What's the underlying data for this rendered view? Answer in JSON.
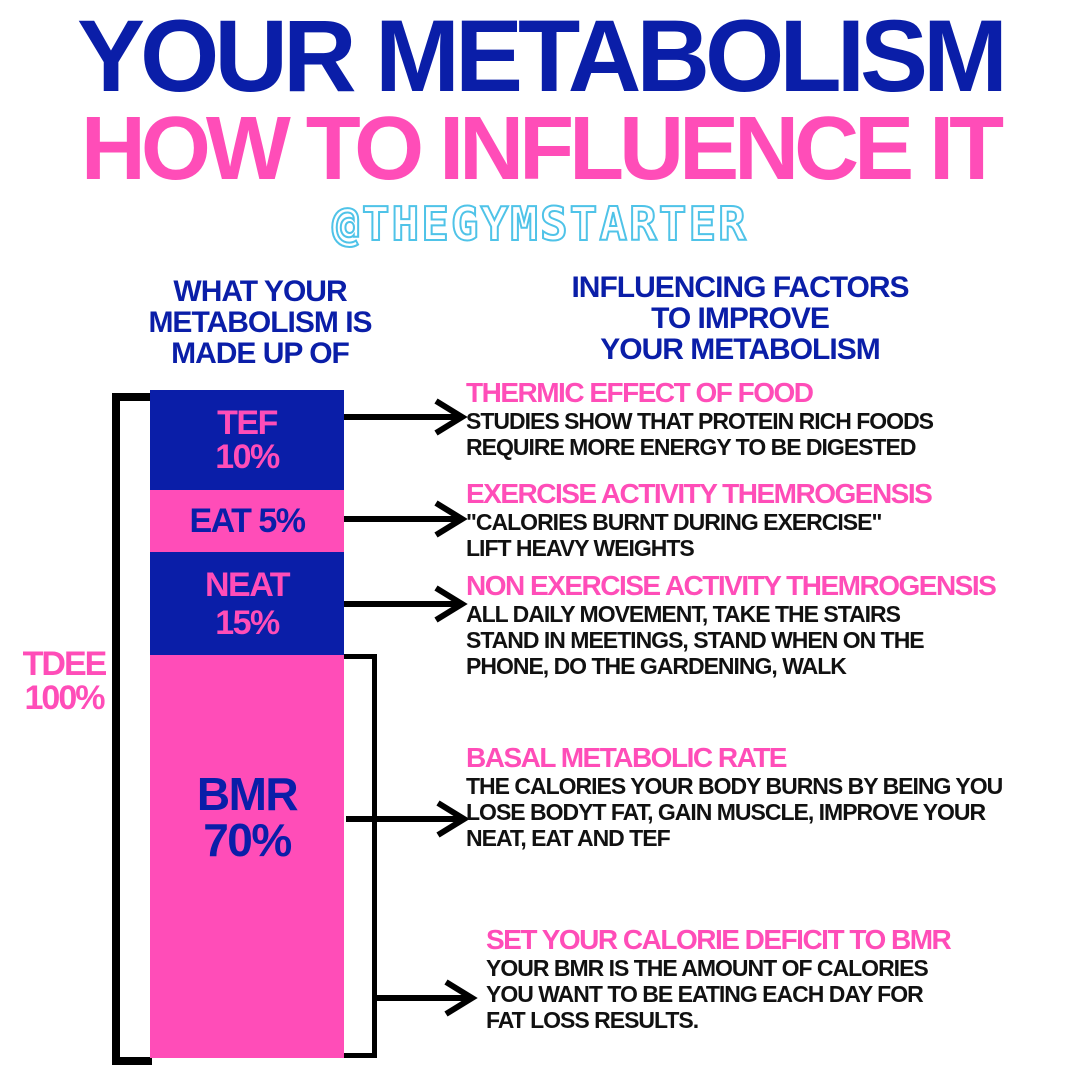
{
  "header": {
    "title": "YOUR METABOLISM",
    "subtitle": "HOW TO INFLUENCE IT",
    "handle": "@THEGYMSTARTER"
  },
  "left_column": {
    "heading_lines": [
      "WHAT YOUR",
      "METABOLISM IS",
      "MADE UP OF"
    ],
    "total_label": [
      "TDEE",
      "100%"
    ]
  },
  "right_column": {
    "heading_lines": [
      "INFLUENCING FACTORS",
      "TO IMPROVE",
      "YOUR METABOLISM"
    ]
  },
  "segments": [
    {
      "label": "TEF",
      "percent": "10%",
      "value": 10,
      "color": "#0a1ea8",
      "text_color": "#ff4db8"
    },
    {
      "label": "EAT 5%",
      "percent": "",
      "value": 5,
      "color": "#ff4db8",
      "text_color": "#0a1ea8"
    },
    {
      "label": "NEAT",
      "percent": "15%",
      "value": 15,
      "color": "#0a1ea8",
      "text_color": "#ff4db8"
    },
    {
      "label": "BMR",
      "percent": "70%",
      "value": 70,
      "color": "#ff4db8",
      "text_color": "#0a1ea8"
    }
  ],
  "factors": [
    {
      "title": "THERMIC EFFECT OF FOOD",
      "lines": [
        "STUDIES SHOW THAT PROTEIN RICH FOODS",
        "REQUIRE MORE ENERGY TO BE DIGESTED"
      ]
    },
    {
      "title": "EXERCISE ACTIVITY THEMROGENSIS",
      "lines": [
        "\"CALORIES BURNT DURING EXERCISE\"",
        "LIFT HEAVY WEIGHTS"
      ]
    },
    {
      "title": "NON EXERCISE ACTIVITY THEMROGENSIS",
      "lines": [
        "ALL DAILY MOVEMENT, TAKE THE STAIRS",
        "STAND IN MEETINGS, STAND WHEN ON THE",
        "PHONE, DO THE GARDENING, WALK"
      ]
    },
    {
      "title": "BASAL METABOLIC RATE",
      "lines": [
        "THE CALORIES YOUR BODY BURNS BY BEING YOU",
        "LOSE BODYT FAT, GAIN MUSCLE, IMPROVE YOUR",
        "NEAT, EAT AND TEF"
      ]
    },
    {
      "title": "SET YOUR CALORIE DEFICIT TO BMR",
      "lines": [
        "YOUR BMR IS THE AMOUNT OF CALORIES",
        "YOU WANT TO BE EATING EACH DAY FOR",
        "FAT LOSS RESULTS."
      ]
    }
  ],
  "colors": {
    "primary_blue": "#0a1ea8",
    "accent_pink": "#ff4db8",
    "handle_cyan": "#4fc3e8",
    "text_black": "#111111"
  },
  "icons": [
    "arrow-right-icon"
  ]
}
